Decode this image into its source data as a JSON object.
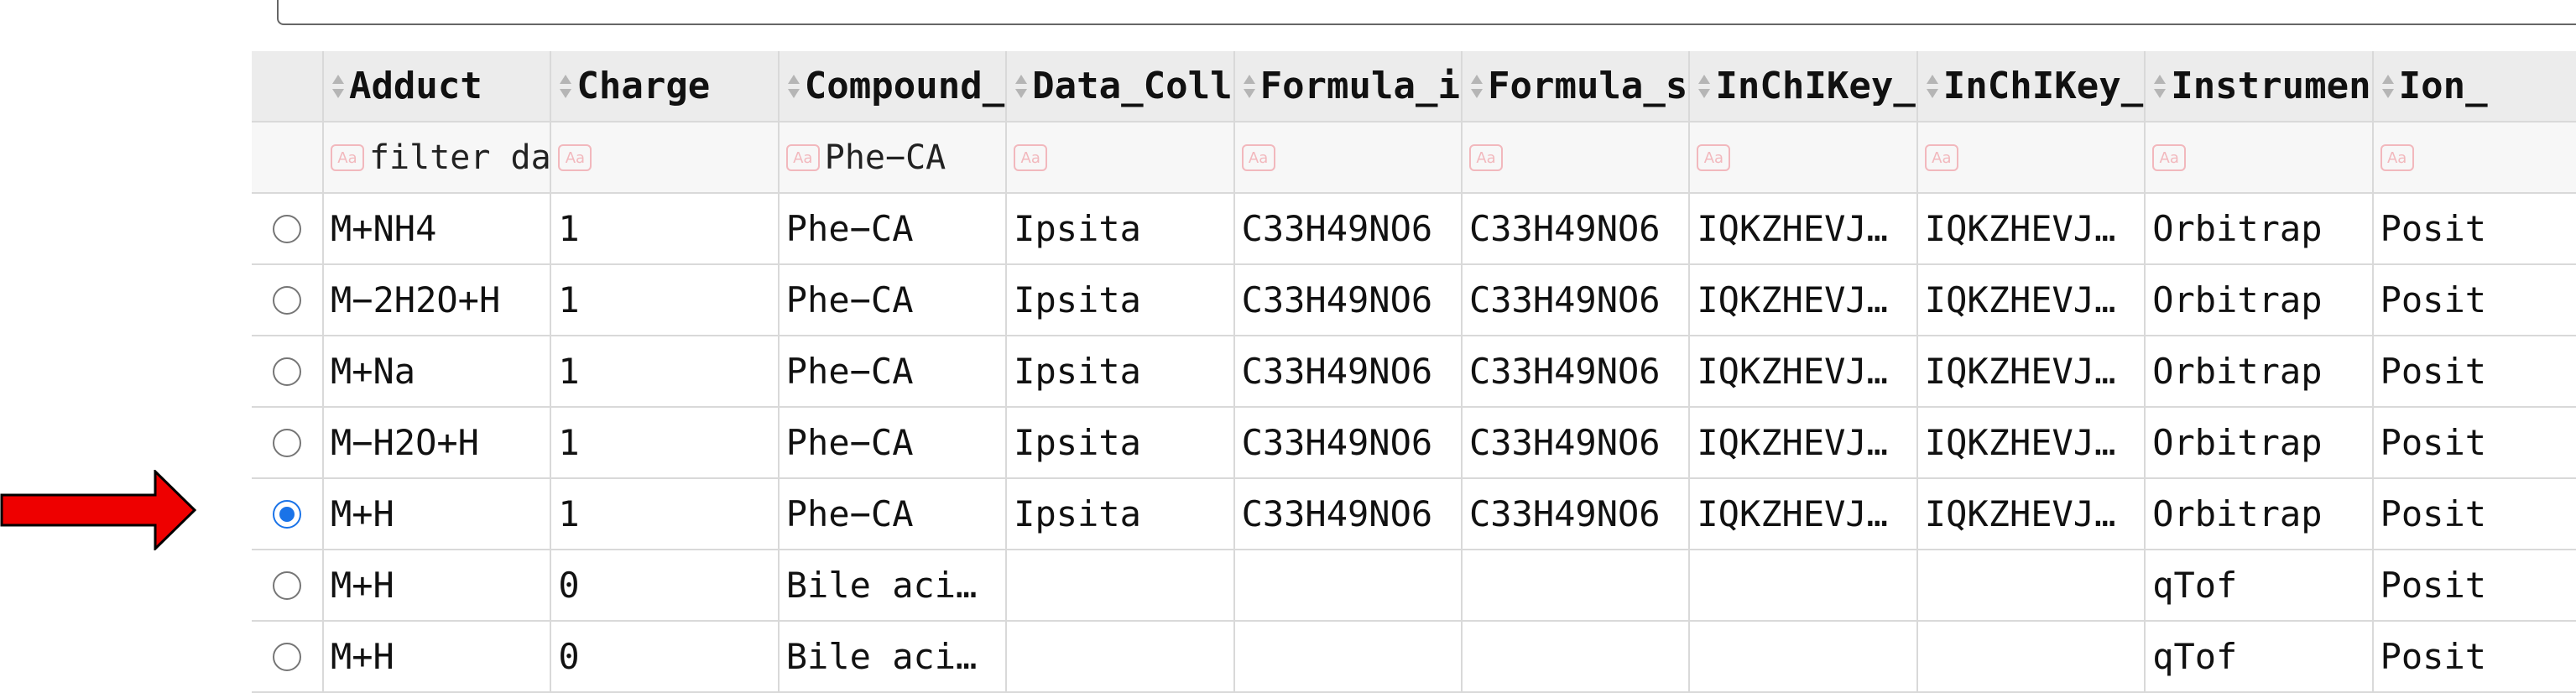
{
  "table": {
    "columns": [
      "Adduct",
      "Charge",
      "Compound_",
      "Data_Coll",
      "Formula_i",
      "Formula_s",
      "InChIKey_",
      "InChIKey_",
      "Instrumen",
      "Ion_"
    ],
    "filters": [
      "filter da",
      "",
      "Phe−CA",
      "",
      "",
      "",
      "",
      "",
      "",
      ""
    ],
    "rows": [
      {
        "selected": false,
        "cells": [
          "M+NH4",
          "1",
          "Phe−CA",
          "Ipsita",
          "C33H49NO6",
          "C33H49NO6",
          "IQKZHEVJ…",
          "IQKZHEVJ…",
          "Orbitrap",
          "Posit"
        ]
      },
      {
        "selected": false,
        "cells": [
          "M−2H2O+H",
          "1",
          "Phe−CA",
          "Ipsita",
          "C33H49NO6",
          "C33H49NO6",
          "IQKZHEVJ…",
          "IQKZHEVJ…",
          "Orbitrap",
          "Posit"
        ]
      },
      {
        "selected": false,
        "cells": [
          "M+Na",
          "1",
          "Phe−CA",
          "Ipsita",
          "C33H49NO6",
          "C33H49NO6",
          "IQKZHEVJ…",
          "IQKZHEVJ…",
          "Orbitrap",
          "Posit"
        ]
      },
      {
        "selected": false,
        "cells": [
          "M−H2O+H",
          "1",
          "Phe−CA",
          "Ipsita",
          "C33H49NO6",
          "C33H49NO6",
          "IQKZHEVJ…",
          "IQKZHEVJ…",
          "Orbitrap",
          "Posit"
        ]
      },
      {
        "selected": true,
        "cells": [
          "M+H",
          "1",
          "Phe−CA",
          "Ipsita",
          "C33H49NO6",
          "C33H49NO6",
          "IQKZHEVJ…",
          "IQKZHEVJ…",
          "Orbitrap",
          "Posit"
        ]
      },
      {
        "selected": false,
        "cells": [
          "M+H",
          "0",
          "Bile aci…",
          "",
          "",
          "",
          "",
          "",
          "qTof",
          "Posit"
        ]
      },
      {
        "selected": false,
        "cells": [
          "M+H",
          "0",
          "Bile aci…",
          "",
          "",
          "",
          "",
          "",
          "qTof",
          "Posit"
        ]
      }
    ]
  },
  "colors": {
    "arrow": "#ee0000",
    "radio_checked": "#1a73e8",
    "filter_icon": "#f2b8bd"
  },
  "icons": {
    "sort": "sort-icon",
    "filter": "aa-filter-icon",
    "arrow": "red-arrow-icon"
  }
}
